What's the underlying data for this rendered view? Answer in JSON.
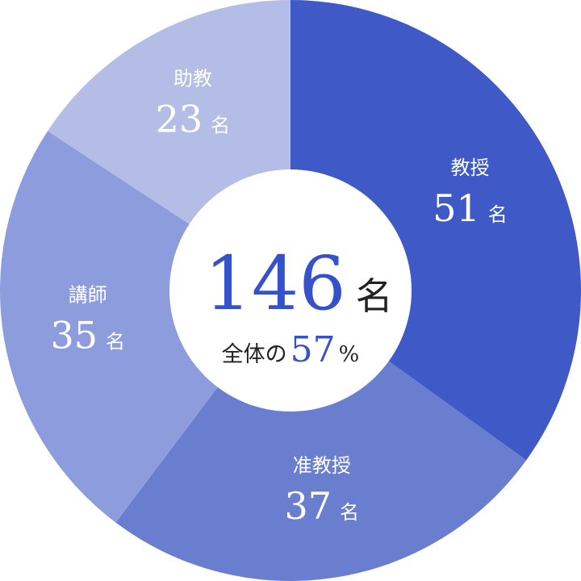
{
  "chart_data": {
    "type": "pie",
    "categories": [
      "教授",
      "准教授",
      "講師",
      "助教"
    ],
    "values": [
      51,
      37,
      35,
      23
    ],
    "unit": "名",
    "colors": [
      "#3f5ac6",
      "#6a7ed0",
      "#8c9cdd",
      "#b3bde6"
    ],
    "start": "top",
    "direction": "clockwise",
    "donut": true,
    "center": {
      "total": "146",
      "total_unit": "名",
      "share_prefix": "全体の",
      "share_value": "57",
      "share_unit": "%",
      "accent_color": "#3552c9"
    }
  }
}
